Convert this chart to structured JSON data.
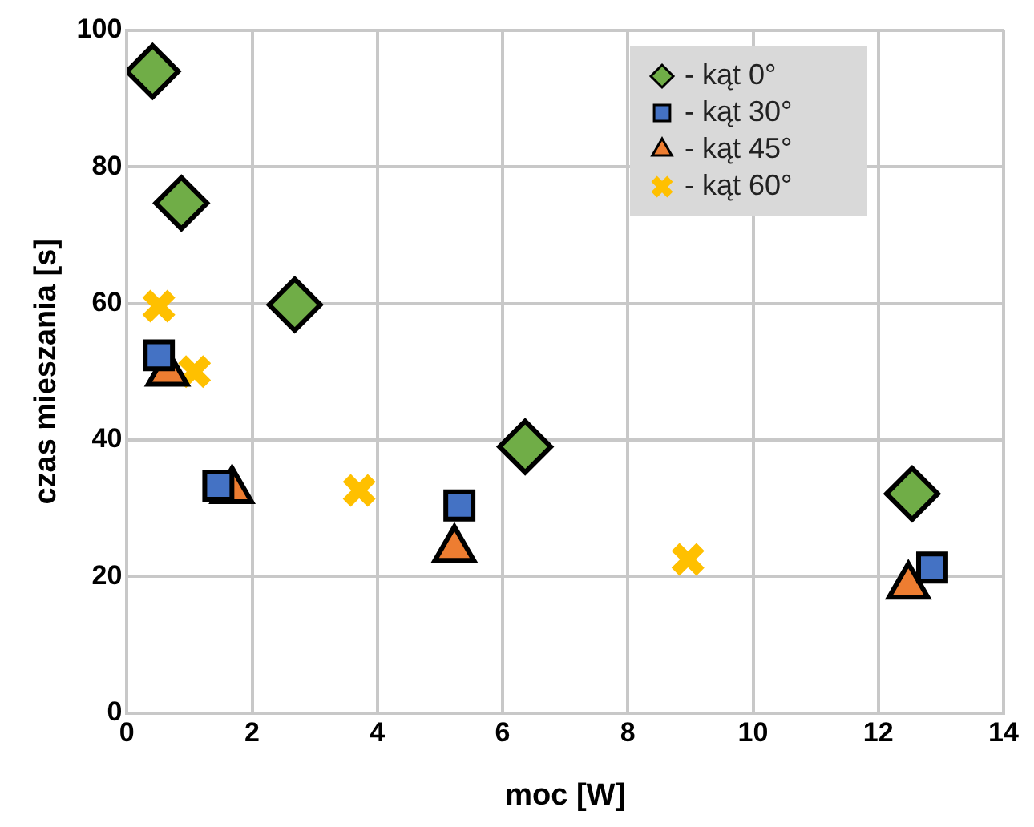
{
  "chart_data": {
    "type": "scatter",
    "xlabel": "moc [W]",
    "ylabel": "czas mieszania [s]",
    "xlim": [
      0,
      14
    ],
    "xticks": [
      0,
      2,
      4,
      6,
      8,
      10,
      12,
      14
    ],
    "ylim": [
      0,
      100
    ],
    "yticks": [
      0,
      20,
      40,
      60,
      80,
      100
    ],
    "grid": true,
    "legend": "top right",
    "series": [
      {
        "name": "- kąt 0°",
        "color": "#70ad47",
        "marker": "diamond",
        "x": [
          0.41,
          0.87,
          2.68,
          6.36,
          12.54
        ],
        "values": [
          94,
          74.7,
          59.8,
          39,
          32.1
        ]
      },
      {
        "name": "- kąt 30°",
        "color": "#4472c4",
        "marker": "square",
        "x": [
          0.51,
          1.46,
          5.31,
          12.86
        ],
        "values": [
          52.4,
          33.3,
          30.4,
          21.3
        ]
      },
      {
        "name": "- kąt 45°",
        "color": "#ed7d31",
        "marker": "triangle",
        "x": [
          0.65,
          1.68,
          5.23,
          12.48
        ],
        "values": [
          49.8,
          32.6,
          24,
          18.6
        ]
      },
      {
        "name": "- kąt 60°",
        "color": "#ffc000",
        "marker": "cross",
        "x": [
          0.51,
          1.08,
          3.71,
          8.96
        ],
        "values": [
          59.6,
          50,
          32.6,
          22.5
        ]
      }
    ]
  }
}
